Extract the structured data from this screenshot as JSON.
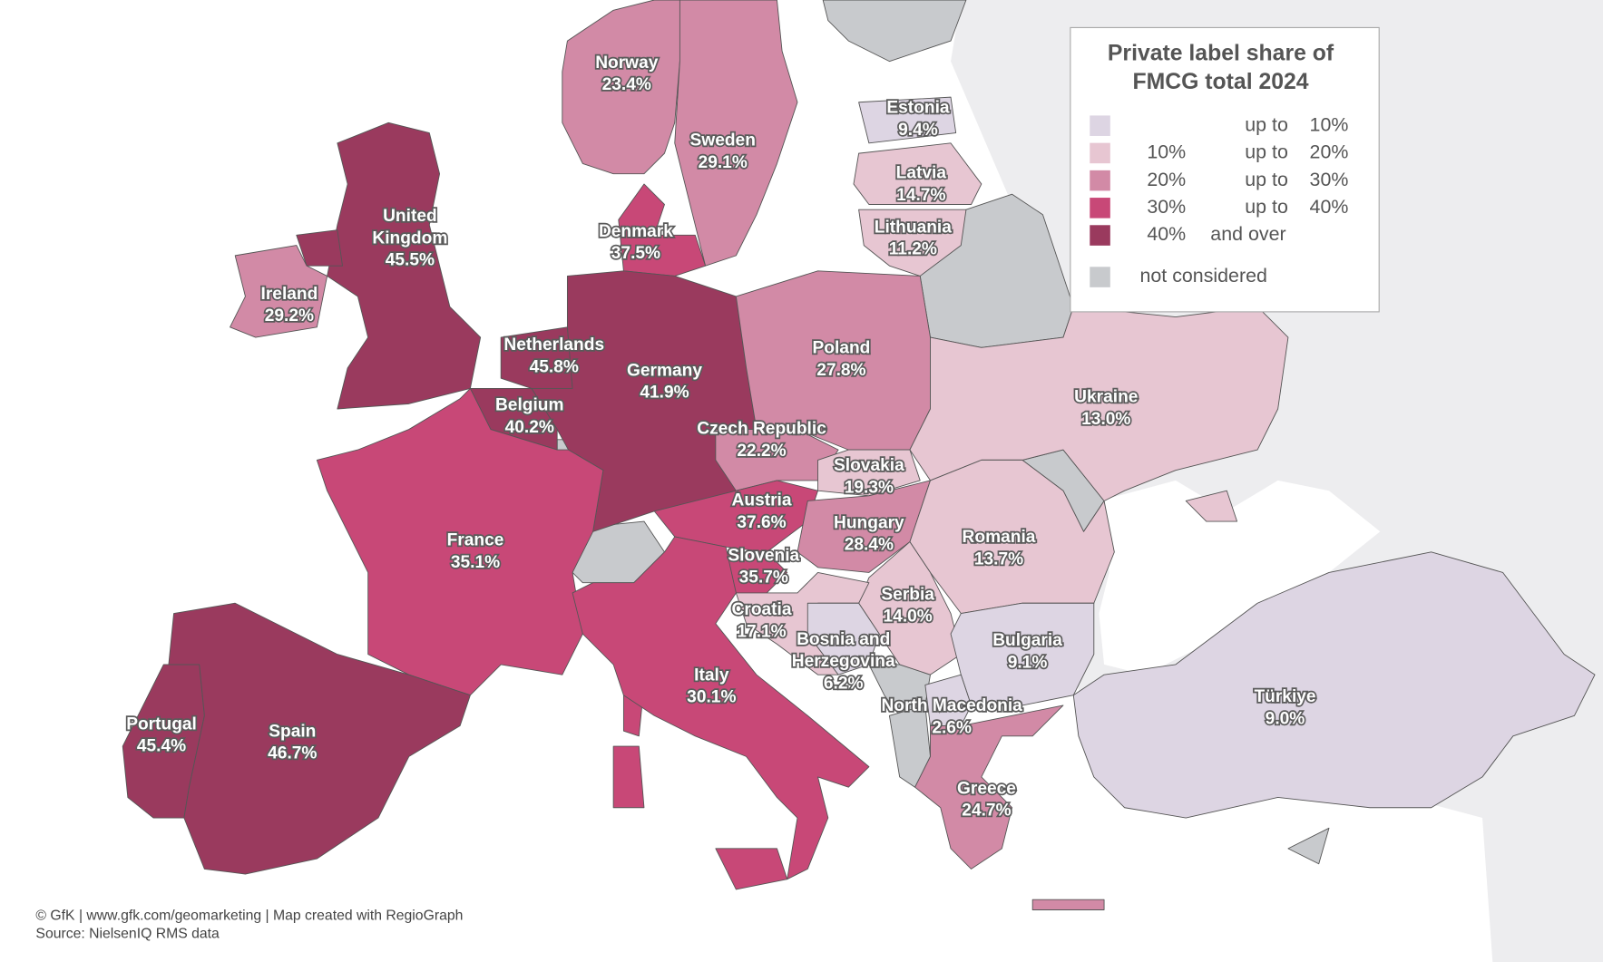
{
  "map": {
    "legend": {
      "title_lines": [
        "Private label share of",
        "FMCG total 2024"
      ],
      "classes": [
        {
          "color": "#ddd5e3",
          "connector": "up to",
          "max": {
            "value": 10,
            "label": "10%"
          }
        },
        {
          "color": "#e7c6d2",
          "min": {
            "value": 10,
            "label": "10%"
          },
          "connector": "up to",
          "max": {
            "value": 20,
            "label": "20%"
          }
        },
        {
          "color": "#d28aa6",
          "min": {
            "value": 20,
            "label": "20%"
          },
          "connector": "up to",
          "max": {
            "value": 30,
            "label": "30%"
          }
        },
        {
          "color": "#c84877",
          "min": {
            "value": 30,
            "label": "30%"
          },
          "connector": "up to",
          "max": {
            "value": 40,
            "label": "40%"
          }
        },
        {
          "color": "#9a3a5e",
          "min": {
            "value": 40,
            "label": "40%"
          },
          "connector": "and over"
        }
      ],
      "not_considered": {
        "color": "#c8cacd",
        "label": "not considered"
      }
    },
    "countries": [
      {
        "name_lines": [
          "Norway"
        ],
        "value": 23.4,
        "value_label": "23.4%"
      },
      {
        "name_lines": [
          "Sweden"
        ],
        "value": 29.1,
        "value_label": "29.1%"
      },
      {
        "name_lines": [
          "Estonia"
        ],
        "value": 9.4,
        "value_label": "9.4%"
      },
      {
        "name_lines": [
          "Latvia"
        ],
        "value": 14.7,
        "value_label": "14.7%"
      },
      {
        "name_lines": [
          "Lithuania"
        ],
        "value": 11.2,
        "value_label": "11.2%"
      },
      {
        "name_lines": [
          "Denmark"
        ],
        "value": 37.5,
        "value_label": "37.5%"
      },
      {
        "name_lines": [
          "United",
          "Kingdom"
        ],
        "value": 45.5,
        "value_label": "45.5%"
      },
      {
        "name_lines": [
          "Ireland"
        ],
        "value": 29.2,
        "value_label": "29.2%"
      },
      {
        "name_lines": [
          "Netherlands"
        ],
        "value": 45.8,
        "value_label": "45.8%"
      },
      {
        "name_lines": [
          "Germany"
        ],
        "value": 41.9,
        "value_label": "41.9%"
      },
      {
        "name_lines": [
          "Poland"
        ],
        "value": 27.8,
        "value_label": "27.8%"
      },
      {
        "name_lines": [
          "Belgium"
        ],
        "value": 40.2,
        "value_label": "40.2%"
      },
      {
        "name_lines": [
          "Czech Republic"
        ],
        "value": 22.2,
        "value_label": "22.2%"
      },
      {
        "name_lines": [
          "Ukraine"
        ],
        "value": 13.0,
        "value_label": "13.0%"
      },
      {
        "name_lines": [
          "Slovakia"
        ],
        "value": 19.3,
        "value_label": "19.3%"
      },
      {
        "name_lines": [
          "Austria"
        ],
        "value": 37.6,
        "value_label": "37.6%"
      },
      {
        "name_lines": [
          "Hungary"
        ],
        "value": 28.4,
        "value_label": "28.4%"
      },
      {
        "name_lines": [
          "Romania"
        ],
        "value": 13.7,
        "value_label": "13.7%"
      },
      {
        "name_lines": [
          "France"
        ],
        "value": 35.1,
        "value_label": "35.1%"
      },
      {
        "name_lines": [
          "Slovenia"
        ],
        "value": 35.7,
        "value_label": "35.7%"
      },
      {
        "name_lines": [
          "Serbia"
        ],
        "value": 14.0,
        "value_label": "14.0%"
      },
      {
        "name_lines": [
          "Croatia"
        ],
        "value": 17.1,
        "value_label": "17.1%"
      },
      {
        "name_lines": [
          "Bosnia and",
          "Herzegovina"
        ],
        "value": 6.2,
        "value_label": "6.2%"
      },
      {
        "name_lines": [
          "Bulgaria"
        ],
        "value": 9.1,
        "value_label": "9.1%"
      },
      {
        "name_lines": [
          "North Macedonia"
        ],
        "value": 2.6,
        "value_label": "2.6%"
      },
      {
        "name_lines": [
          "Italy"
        ],
        "value": 30.1,
        "value_label": "30.1%"
      },
      {
        "name_lines": [
          "Türkiye"
        ],
        "value": 9.0,
        "value_label": "9.0%"
      },
      {
        "name_lines": [
          "Portugal"
        ],
        "value": 45.4,
        "value_label": "45.4%"
      },
      {
        "name_lines": [
          "Spain"
        ],
        "value": 46.7,
        "value_label": "46.7%"
      },
      {
        "name_lines": [
          "Greece"
        ],
        "value": 24.7,
        "value_label": "24.7%"
      }
    ],
    "credits": [
      "© GfK | www.gfk.com/geomarketing | Map created with RegioGraph",
      "Source: NielsenIQ RMS data"
    ]
  }
}
